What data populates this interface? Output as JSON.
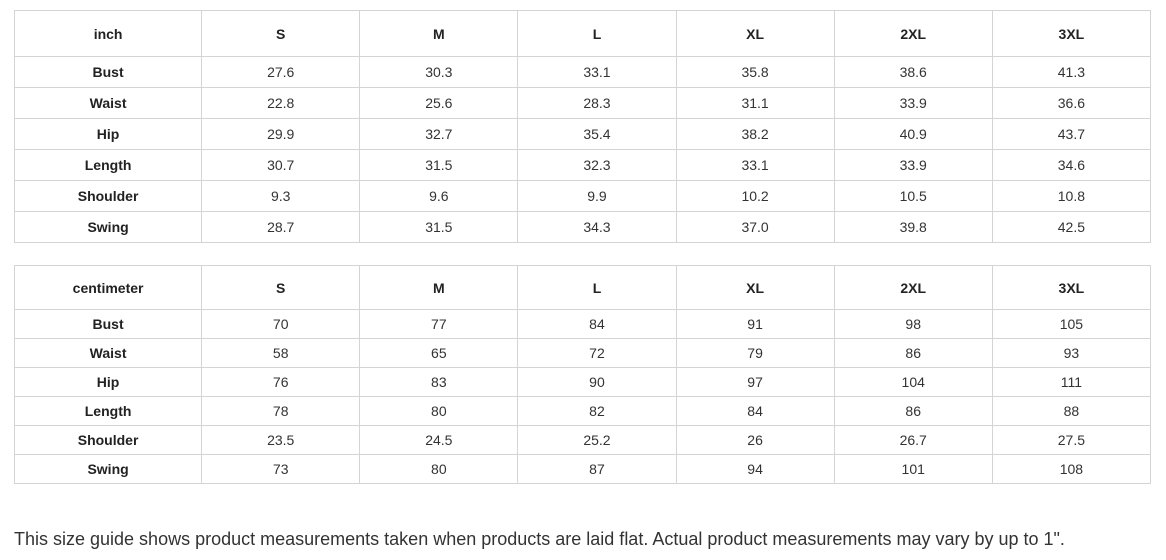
{
  "tables": [
    {
      "unit": "inch",
      "sizes": [
        "S",
        "M",
        "L",
        "XL",
        "2XL",
        "3XL"
      ],
      "rows": [
        {
          "label": "Bust",
          "values": [
            "27.6",
            "30.3",
            "33.1",
            "35.8",
            "38.6",
            "41.3"
          ]
        },
        {
          "label": "Waist",
          "values": [
            "22.8",
            "25.6",
            "28.3",
            "31.1",
            "33.9",
            "36.6"
          ]
        },
        {
          "label": "Hip",
          "values": [
            "29.9",
            "32.7",
            "35.4",
            "38.2",
            "40.9",
            "43.7"
          ]
        },
        {
          "label": "Length",
          "values": [
            "30.7",
            "31.5",
            "32.3",
            "33.1",
            "33.9",
            "34.6"
          ]
        },
        {
          "label": "Shoulder",
          "values": [
            "9.3",
            "9.6",
            "9.9",
            "10.2",
            "10.5",
            "10.8"
          ]
        },
        {
          "label": "Swing",
          "values": [
            "28.7",
            "31.5",
            "34.3",
            "37.0",
            "39.8",
            "42.5"
          ]
        }
      ]
    },
    {
      "unit": "centimeter",
      "sizes": [
        "S",
        "M",
        "L",
        "XL",
        "2XL",
        "3XL"
      ],
      "rows": [
        {
          "label": "Bust",
          "values": [
            "70",
            "77",
            "84",
            "91",
            "98",
            "105"
          ]
        },
        {
          "label": "Waist",
          "values": [
            "58",
            "65",
            "72",
            "79",
            "86",
            "93"
          ]
        },
        {
          "label": "Hip",
          "values": [
            "76",
            "83",
            "90",
            "97",
            "104",
            "111"
          ]
        },
        {
          "label": "Length",
          "values": [
            "78",
            "80",
            "82",
            "84",
            "86",
            "88"
          ]
        },
        {
          "label": "Shoulder",
          "values": [
            "23.5",
            "24.5",
            "25.2",
            "26",
            "26.7",
            "27.5"
          ]
        },
        {
          "label": "Swing",
          "values": [
            "73",
            "80",
            "87",
            "94",
            "101",
            "108"
          ]
        }
      ]
    }
  ],
  "note": "This size guide shows product measurements taken when products are laid flat. Actual product measurements may vary by up to 1\"."
}
